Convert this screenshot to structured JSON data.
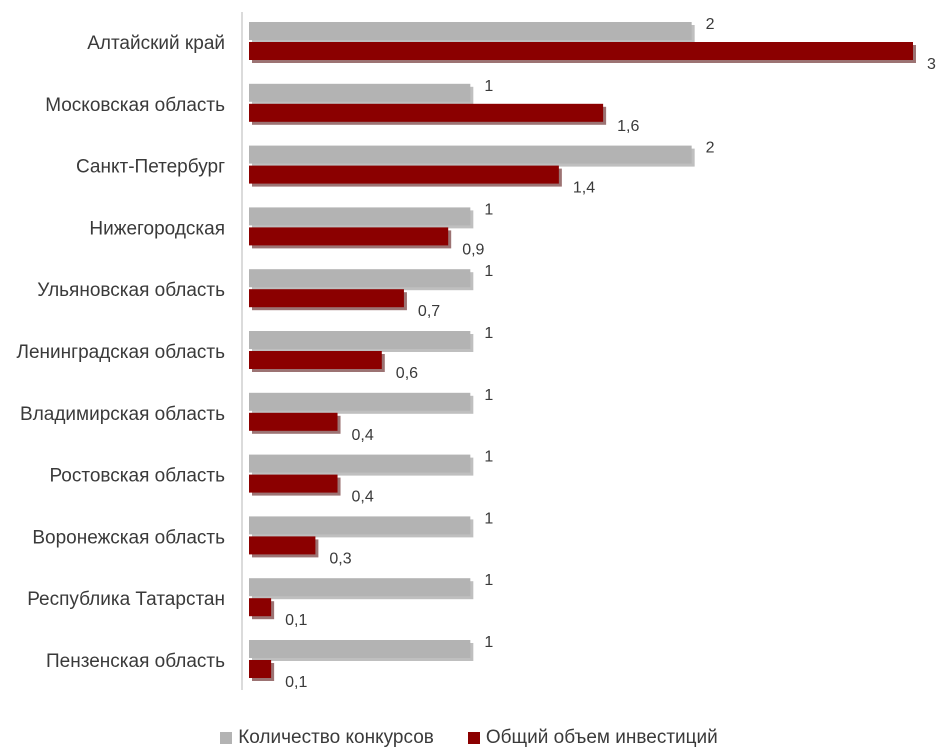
{
  "chart_data": {
    "type": "bar",
    "orientation": "horizontal",
    "categories": [
      "Алтайский край",
      "Московская область",
      "Санкт-Петербург",
      "Нижегородская",
      "Ульяновская область",
      "Ленинградская область",
      "Владимирская область",
      "Ростовская область",
      "Воронежская область",
      "Республика Татарстан",
      "Пензенская область"
    ],
    "series": [
      {
        "name": "Количество конкурсов",
        "values": [
          2,
          1,
          2,
          1,
          1,
          1,
          1,
          1,
          1,
          1,
          1
        ],
        "labels": [
          "2",
          "1",
          "2",
          "1",
          "1",
          "1",
          "1",
          "1",
          "1",
          "1",
          "1"
        ],
        "color": "#b3b3b3"
      },
      {
        "name": "Общий объем инвестиций",
        "values": [
          3,
          1.6,
          1.4,
          0.9,
          0.7,
          0.6,
          0.4,
          0.4,
          0.3,
          0.1,
          0.1
        ],
        "labels": [
          "3",
          "1,6",
          "1,4",
          "0,9",
          "0,7",
          "0,6",
          "0,4",
          "0,4",
          "0,3",
          "0,1",
          "0,1"
        ],
        "color": "#8b0000"
      }
    ],
    "xlim": [
      0,
      3
    ],
    "grid": false,
    "legend_position": "bottom"
  }
}
